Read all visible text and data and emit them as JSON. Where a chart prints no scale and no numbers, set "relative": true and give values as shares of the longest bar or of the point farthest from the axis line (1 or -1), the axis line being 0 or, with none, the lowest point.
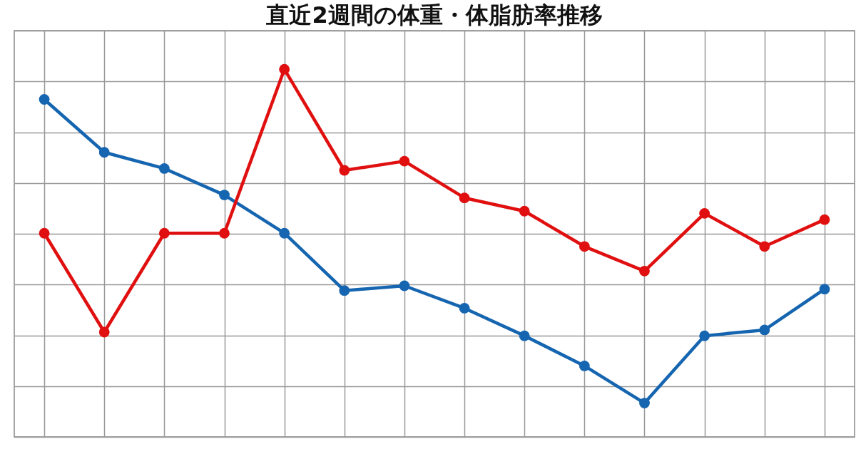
{
  "chart_data": {
    "type": "line",
    "title": "直近2週間の体重・体脂肪率推移",
    "categories": [
      null,
      null,
      null,
      null,
      null,
      null,
      null,
      null,
      null,
      null,
      null,
      null,
      null,
      null
    ],
    "relative": true,
    "grid": true,
    "marker": "circle",
    "series": [
      {
        "color": "#1565b0",
        "values": [
          0.918,
          0.774,
          0.73,
          0.658,
          0.554,
          0.398,
          0.411,
          0.35,
          0.275,
          0.193,
          0.092,
          0.275,
          0.291,
          0.402
        ]
      },
      {
        "color": "#e01010",
        "values": [
          0.554,
          0.285,
          0.554,
          0.554,
          1,
          0.725,
          0.75,
          0.65,
          0.614,
          0.518,
          0.451,
          0.608,
          0.518,
          0.591
        ]
      }
    ]
  }
}
